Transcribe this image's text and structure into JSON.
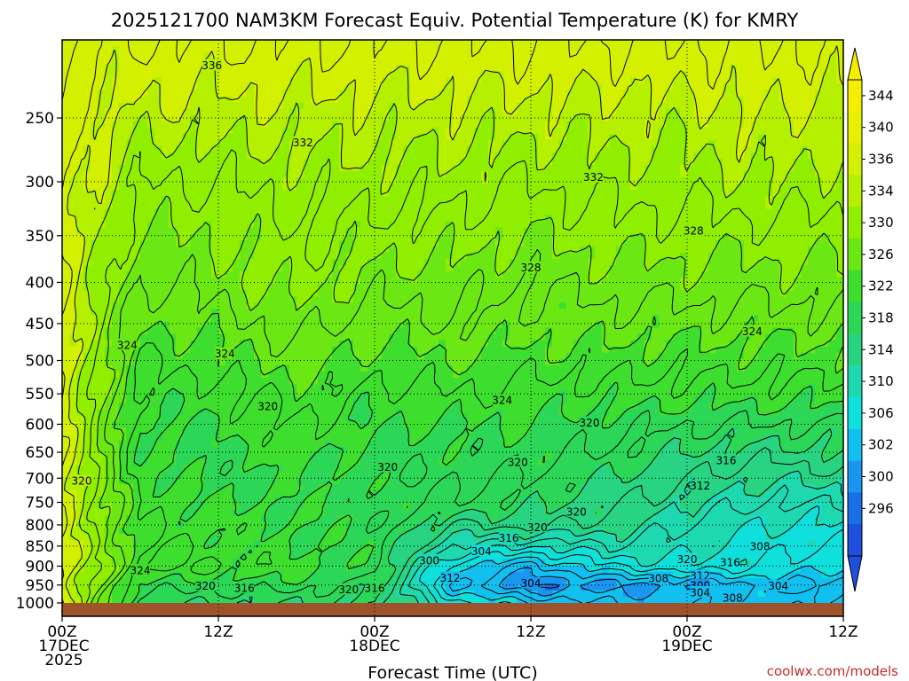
{
  "chart_data": {
    "type": "heatmap",
    "title": "2025121700 NAM3KM Forecast Equiv. Potential Temperature (K) for KMRY",
    "xlabel": "Forecast Time (UTC)",
    "ylabel": "",
    "y_scale": "log-pressure",
    "y_inverted": true,
    "ylim_hPa": [
      1000,
      200
    ],
    "y_ticks": [
      250,
      300,
      350,
      400,
      450,
      500,
      550,
      600,
      650,
      700,
      750,
      800,
      850,
      900,
      950,
      1000
    ],
    "x_range_hours": [
      0,
      60
    ],
    "x_ticks": [
      {
        "hour": 0,
        "lines": [
          "00Z",
          "17DEC",
          "2025"
        ]
      },
      {
        "hour": 12,
        "lines": [
          "12Z"
        ]
      },
      {
        "hour": 24,
        "lines": [
          "00Z",
          "18DEC"
        ]
      },
      {
        "hour": 36,
        "lines": [
          "12Z"
        ]
      },
      {
        "hour": 48,
        "lines": [
          "00Z",
          "19DEC"
        ]
      },
      {
        "hour": 60,
        "lines": [
          "12Z"
        ]
      }
    ],
    "grid": "dotted",
    "colorbar": {
      "placement": "right",
      "labels": [
        344,
        340,
        336,
        334,
        330,
        326,
        322,
        318,
        314,
        310,
        306,
        302,
        300,
        296
      ],
      "colors": [
        "#f5ee00",
        "#e6f000",
        "#d2f000",
        "#b4f000",
        "#90ee00",
        "#6be814",
        "#3ede2e",
        "#2cd656",
        "#28d482",
        "#1ed9b0",
        "#0fe0dc",
        "#12c0f0",
        "#1a96f0",
        "#1a6ee6",
        "#1e50dc"
      ]
    },
    "surface_color": "#a0522d",
    "profile_hPa": [
      200,
      250,
      300,
      350,
      400,
      450,
      500,
      550,
      600,
      650,
      700,
      750,
      800,
      850,
      900,
      950,
      1000
    ],
    "times_hours": [
      0,
      6,
      12,
      18,
      24,
      30,
      36,
      42,
      48,
      54,
      60
    ],
    "theta_e_K": [
      [
        338,
        338,
        338,
        338,
        338,
        338,
        338,
        338,
        338,
        338,
        338,
        338,
        338,
        338,
        338,
        338,
        338
      ],
      [
        338,
        335,
        332,
        330,
        328,
        326,
        324,
        323,
        322,
        322,
        323,
        324,
        324,
        325,
        325,
        321,
        319
      ],
      [
        338,
        335,
        332,
        330,
        329,
        327,
        325,
        323,
        322,
        321,
        321,
        322,
        323,
        323,
        324,
        321,
        318
      ],
      [
        338,
        335,
        333,
        332,
        331,
        329,
        327,
        325,
        324,
        323,
        322,
        322,
        322,
        322,
        323,
        321,
        318
      ],
      [
        338,
        335,
        333,
        331,
        329,
        327,
        325,
        323,
        322,
        321,
        321,
        321,
        321,
        321,
        321,
        319,
        318
      ],
      [
        338,
        335,
        333,
        331,
        329,
        328,
        326,
        324,
        322,
        321,
        320,
        320,
        316,
        312,
        307,
        304,
        309
      ],
      [
        338,
        335,
        332,
        330,
        328,
        327,
        325,
        323,
        322,
        321,
        320,
        319,
        317,
        310,
        303,
        300,
        306
      ],
      [
        338,
        335,
        333,
        331,
        329,
        327,
        325,
        323,
        321,
        320,
        318,
        317,
        315,
        312,
        308,
        301,
        304
      ],
      [
        338,
        335,
        333,
        331,
        329,
        327,
        325,
        323,
        320,
        318,
        316,
        314,
        312,
        311,
        310,
        302,
        303
      ],
      [
        338,
        336,
        334,
        331,
        329,
        327,
        325,
        323,
        320,
        317,
        314,
        312,
        310,
        309,
        308,
        304,
        305
      ],
      [
        338,
        335,
        333,
        331,
        329,
        327,
        325,
        323,
        320,
        318,
        315,
        312,
        310,
        308,
        306,
        303,
        305
      ]
    ],
    "contour_labels": [
      {
        "text": "336",
        "hour": 11.5,
        "p": 215
      },
      {
        "text": "332",
        "hour": 18.5,
        "p": 268
      },
      {
        "text": "332",
        "hour": 40.8,
        "p": 296
      },
      {
        "text": "328",
        "hour": 48.5,
        "p": 345
      },
      {
        "text": "328",
        "hour": 36.0,
        "p": 383
      },
      {
        "text": "324",
        "hour": 5.0,
        "p": 478
      },
      {
        "text": "324",
        "hour": 12.5,
        "p": 490
      },
      {
        "text": "324",
        "hour": 53.0,
        "p": 460
      },
      {
        "text": "324",
        "hour": 33.8,
        "p": 560
      },
      {
        "text": "320",
        "hour": 15.8,
        "p": 570
      },
      {
        "text": "320",
        "hour": 40.5,
        "p": 597
      },
      {
        "text": "320",
        "hour": 1.5,
        "p": 705
      },
      {
        "text": "320",
        "hour": 25.0,
        "p": 678
      },
      {
        "text": "320",
        "hour": 35.0,
        "p": 668
      },
      {
        "text": "316",
        "hour": 51.0,
        "p": 665
      },
      {
        "text": "312",
        "hour": 49.0,
        "p": 715
      },
      {
        "text": "320",
        "hour": 39.5,
        "p": 770
      },
      {
        "text": "320",
        "hour": 36.5,
        "p": 805
      },
      {
        "text": "316",
        "hour": 34.3,
        "p": 830
      },
      {
        "text": "304",
        "hour": 32.2,
        "p": 862
      },
      {
        "text": "300",
        "hour": 28.2,
        "p": 885
      },
      {
        "text": "308",
        "hour": 53.6,
        "p": 850
      },
      {
        "text": "320",
        "hour": 48.0,
        "p": 882
      },
      {
        "text": "316",
        "hour": 51.3,
        "p": 890
      },
      {
        "text": "324",
        "hour": 6.0,
        "p": 910
      },
      {
        "text": "312",
        "hour": 29.8,
        "p": 930
      },
      {
        "text": "312",
        "hour": 49.0,
        "p": 925
      },
      {
        "text": "308",
        "hour": 45.8,
        "p": 932
      },
      {
        "text": "304",
        "hour": 36.0,
        "p": 945
      },
      {
        "text": "300",
        "hour": 49.0,
        "p": 950
      },
      {
        "text": "304",
        "hour": 55.0,
        "p": 952
      },
      {
        "text": "320",
        "hour": 11.0,
        "p": 952
      },
      {
        "text": "316",
        "hour": 14.0,
        "p": 958
      },
      {
        "text": "320",
        "hour": 22.0,
        "p": 962
      },
      {
        "text": "316",
        "hour": 24.0,
        "p": 958
      },
      {
        "text": "304",
        "hour": 49.0,
        "p": 970
      },
      {
        "text": "308",
        "hour": 51.5,
        "p": 985
      }
    ]
  },
  "credit": "coolwx.com/models"
}
